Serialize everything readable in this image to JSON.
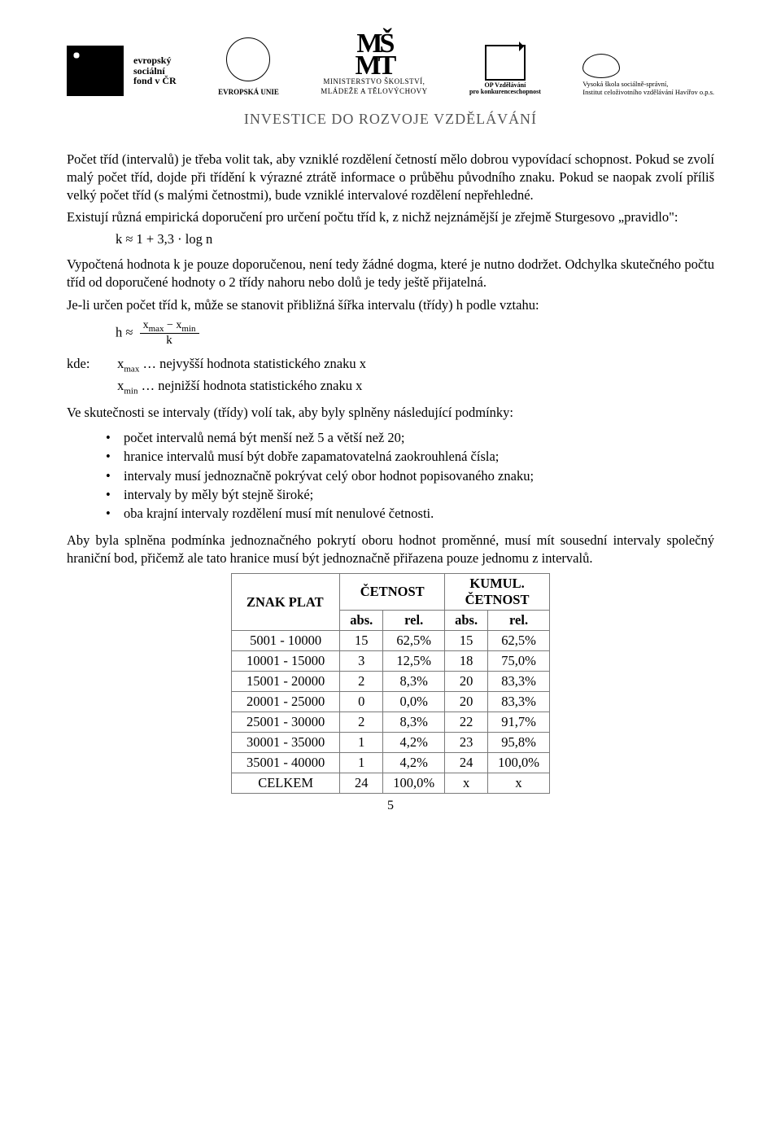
{
  "header": {
    "esf_lines": [
      "evropský",
      "sociální",
      "fond v ČR"
    ],
    "eu_label": "EVROPSKÁ UNIE",
    "msmt_glyph": "MŠMT",
    "msmt_line1": "MINISTERSTVO ŠKOLSTVÍ,",
    "msmt_line2": "MLÁDEŽE A TĚLOVÝCHOVY",
    "op_line1": "OP Vzdělávání",
    "op_line2": "pro konkurenceschopnost",
    "vs_line1": "Vysoká škola sociálně-správní,",
    "vs_line2": "Institut celoživotního vzdělávání Havířov o.p.s.",
    "tagline": "INVESTICE DO ROZVOJE VZDĚLÁVÁNÍ"
  },
  "paragraphs": {
    "p1": "Počet tříd (intervalů) je třeba volit tak, aby vzniklé rozdělení četností mělo dobrou vypovídací schopnost. Pokud se zvolí malý počet tříd, dojde při třídění k výrazné ztrátě informace o průběhu původního znaku. Pokud se naopak zvolí příliš velký počet tříd (s malými četnostmi), bude vzniklé intervalové rozdělení nepřehledné.",
    "p2": "Existují různá empirická doporučení pro určení počtu tříd k, z nichž nejznámější je zřejmě Sturgesovo „pravidlo\":",
    "formula1": "k ≈ 1 + 3,3 · log n",
    "p3": "Vypočtená hodnota k je pouze doporučenou, není tedy žádné dogma, které je nutno dodržet. Odchylka skutečného počtu tříd od doporučené hodnoty o 2 třídy nahoru nebo dolů je tedy ještě přijatelná.",
    "p4": "Je-li určen počet tříd k, může se stanovit přibližná šířka intervalu (třídy) h podle vztahu:",
    "h_prefix": "h ≈",
    "frac_num": "x",
    "frac_num_sub1": "max",
    "frac_minus": " − x",
    "frac_num_sub2": "min",
    "frac_den": "k",
    "kde_label": "kde:",
    "kde1_a": "x",
    "kde1_sub": "max",
    "kde1_b": " … nejvyšší hodnota statistického znaku x",
    "kde2_a": "x",
    "kde2_sub": "min",
    "kde2_b": " … nejnižší hodnota statistického znaku x",
    "p5": "Ve skutečnosti se intervaly (třídy) volí tak, aby byly splněny následující podmínky:",
    "b1": "počet intervalů nemá být menší než 5 a větší než 20;",
    "b2": "hranice intervalů musí být dobře zapamatovatelná zaokrouhlená čísla;",
    "b3": "intervaly musí jednoznačně pokrývat celý obor hodnot popisovaného znaku;",
    "b4": "intervaly by měly být stejně široké;",
    "b5": "oba krajní intervaly rozdělení musí mít nenulové četnosti.",
    "p6": "Aby byla splněna podmínka jednoznačného pokrytí oboru hodnot proměnné, musí mít sousední intervaly společný hraniční bod, přičemž ale tato hranice musí být jednoznačně přiřazena pouze jednomu z intervalů."
  },
  "table": {
    "h_znak": "ZNAK PLAT",
    "h_cetnost": "ČETNOST",
    "h_kumul1": "KUMUL.",
    "h_kumul2": "ČETNOST",
    "h_abs": "abs.",
    "h_rel": "rel.",
    "rows": [
      {
        "range": "5001 - 10000",
        "abs": "15",
        "rel": "62,5%",
        "kabs": "15",
        "krel": "62,5%"
      },
      {
        "range": "10001 - 15000",
        "abs": "3",
        "rel": "12,5%",
        "kabs": "18",
        "krel": "75,0%"
      },
      {
        "range": "15001 - 20000",
        "abs": "2",
        "rel": "8,3%",
        "kabs": "20",
        "krel": "83,3%"
      },
      {
        "range": "20001 - 25000",
        "abs": "0",
        "rel": "0,0%",
        "kabs": "20",
        "krel": "83,3%"
      },
      {
        "range": "25001 - 30000",
        "abs": "2",
        "rel": "8,3%",
        "kabs": "22",
        "krel": "91,7%"
      },
      {
        "range": "30001 - 35000",
        "abs": "1",
        "rel": "4,2%",
        "kabs": "23",
        "krel": "95,8%"
      },
      {
        "range": "35001 - 40000",
        "abs": "1",
        "rel": "4,2%",
        "kabs": "24",
        "krel": "100,0%"
      }
    ],
    "total_label": "CELKEM",
    "total_abs": "24",
    "total_rel": "100,0%",
    "total_x": "x"
  },
  "page_number": "5"
}
